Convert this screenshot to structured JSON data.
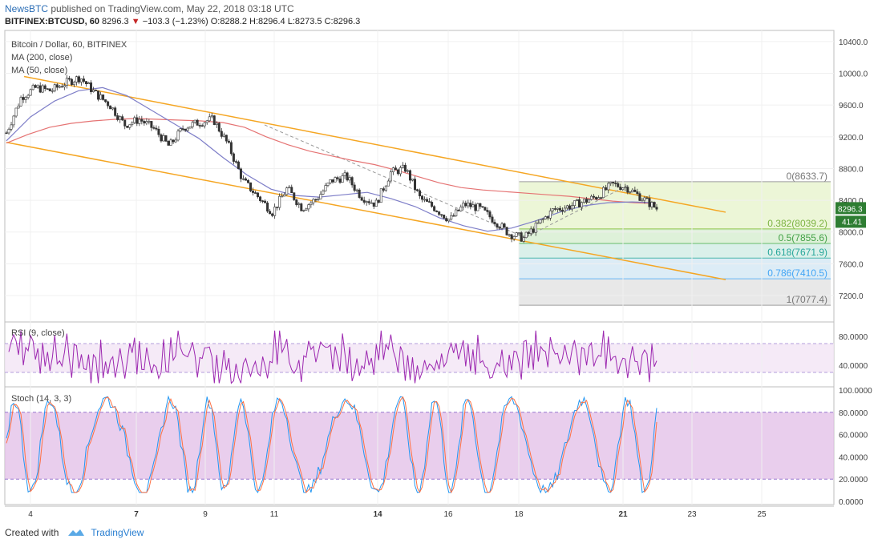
{
  "header": {
    "line1_brand": "NewsBTC",
    "line1_rest": " published on TradingView.com, May 22, 2018 03:18 UTC",
    "symbol": "BITFINEX:BTCUSD, 60",
    "last": "8296.3",
    "change_arrow": "▼",
    "change": "−103.3 (−1.23%)",
    "ohlc": "O:8288.2 H:8296.4 L:8273.5 C:8296.3"
  },
  "pane_labels": {
    "title": "Bitcoin / Dollar, 60, BITFINEX",
    "ma200": "MA (200, close)",
    "ma50": "MA (50, close)",
    "rsi": "RSI (9, close)",
    "stoch": "Stoch (14, 3, 3)"
  },
  "footer": {
    "created_with": "Created with",
    "brand": "TradingView"
  },
  "colors": {
    "up": "#26a69a",
    "down": "#ef5350",
    "ma200": "#e57373",
    "ma50": "#7e7ec8",
    "channel": "#f5a623",
    "rsi": "#9c27b0",
    "stoch_k": "#2196f3",
    "stoch_d": "#ff7043",
    "price_badge": "#2e7d32",
    "rsi_badge": "#2e7d32"
  },
  "badges": {
    "price": "8296.3",
    "rsi": "41.41"
  },
  "chart_data": [
    {
      "type": "candlestick",
      "title": "Bitcoin / Dollar, 60, BITFINEX",
      "x_ticks": [
        "4",
        "7",
        "9",
        "11",
        "14",
        "16",
        "18",
        "21",
        "23",
        "25"
      ],
      "y_ticks": [
        "10400.0",
        "10000.0",
        "9600.0",
        "9200.0",
        "8800.0",
        "8400.0",
        "8000.0",
        "7600.0",
        "7200.0"
      ],
      "ylim": [
        6900,
        10500
      ],
      "close_path": [
        9250,
        9700,
        9820,
        9780,
        9880,
        9950,
        9750,
        9600,
        9350,
        9420,
        9300,
        9080,
        9320,
        9380,
        9420,
        9100,
        8650,
        8450,
        8250,
        8550,
        8300,
        8420,
        8650,
        8700,
        8450,
        8350,
        8750,
        8800,
        8420,
        8300,
        8150,
        8350,
        8300,
        8150,
        7980,
        7920,
        8100,
        8280,
        8320,
        8380,
        8450,
        8600,
        8560,
        8430,
        8296
      ],
      "ma200_path": [
        9120,
        9230,
        9320,
        9370,
        9400,
        9420,
        9430,
        9420,
        9410,
        9400,
        9380,
        9320,
        9200,
        9100,
        9020,
        8960,
        8900,
        8850,
        8780,
        8700,
        8620,
        8560,
        8530,
        8510,
        8490,
        8470,
        8450,
        8420,
        8390,
        8370,
        8360
      ],
      "ma50_path": [
        9150,
        9450,
        9650,
        9780,
        9820,
        9720,
        9540,
        9360,
        9180,
        8940,
        8720,
        8540,
        8460,
        8440,
        8470,
        8500,
        8420,
        8320,
        8180,
        8080,
        8010,
        8050,
        8140,
        8250,
        8330,
        8370,
        8380,
        8370
      ],
      "fibonacci": [
        {
          "label": "0(8633.7)",
          "value": 8633.7
        },
        {
          "label": "0.382(8039.2)",
          "value": 8039.2
        },
        {
          "label": "0.5(7855.6)",
          "value": 7855.6
        },
        {
          "label": "0.618(7671.9)",
          "value": 7671.9
        },
        {
          "label": "0.786(7410.5)",
          "value": 7410.5
        },
        {
          "label": "1(7077.4)",
          "value": 7077.4
        }
      ]
    },
    {
      "type": "line",
      "title": "RSI (9, close)",
      "y_ticks": [
        "80.0000",
        "40.0000"
      ],
      "ylim": [
        10,
        100
      ],
      "band": [
        30,
        70
      ],
      "last": 41.41
    },
    {
      "type": "line",
      "title": "Stoch (14, 3, 3)",
      "y_ticks": [
        "100.0000",
        "80.0000",
        "60.0000",
        "40.0000",
        "20.0000",
        "0.0000"
      ],
      "ylim": [
        0,
        100
      ],
      "band": [
        20,
        80
      ]
    }
  ]
}
